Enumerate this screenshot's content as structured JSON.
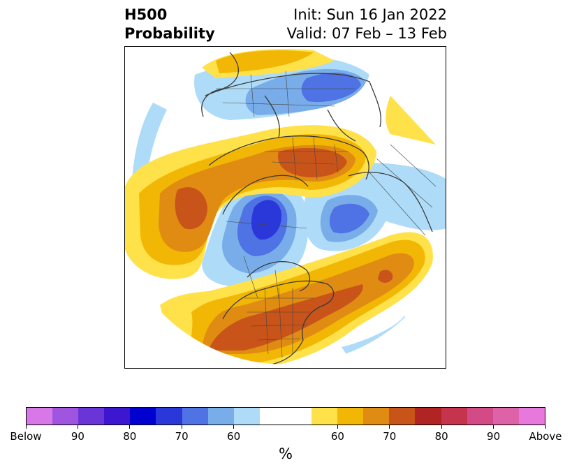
{
  "title": {
    "left_line1": "H500",
    "left_line2": "Probability",
    "right_line1": "Init: Sun 16 Jan 2022",
    "right_line2": "Valid: 07 Feb – 13 Feb"
  },
  "colorbar": {
    "unit": "%",
    "colors": [
      "#d878e8",
      "#a055e0",
      "#6a35d6",
      "#3d16cf",
      "#0000d0",
      "#2a38da",
      "#4f72e4",
      "#78ade9",
      "#aedcf8",
      "#ffffff",
      "#ffffff",
      "#ffe14a",
      "#f2b705",
      "#e08c12",
      "#c8541a",
      "#b02424",
      "#c5344c",
      "#d24a86",
      "#de62a8",
      "#e778dc"
    ],
    "labels": [
      "Below",
      "90",
      "80",
      "70",
      "60",
      "60",
      "70",
      "80",
      "90",
      "Above"
    ]
  },
  "map": {
    "projection": "north-polar-stereographic",
    "legend_meaning": "probability of below / above normal 500 hPa height"
  }
}
